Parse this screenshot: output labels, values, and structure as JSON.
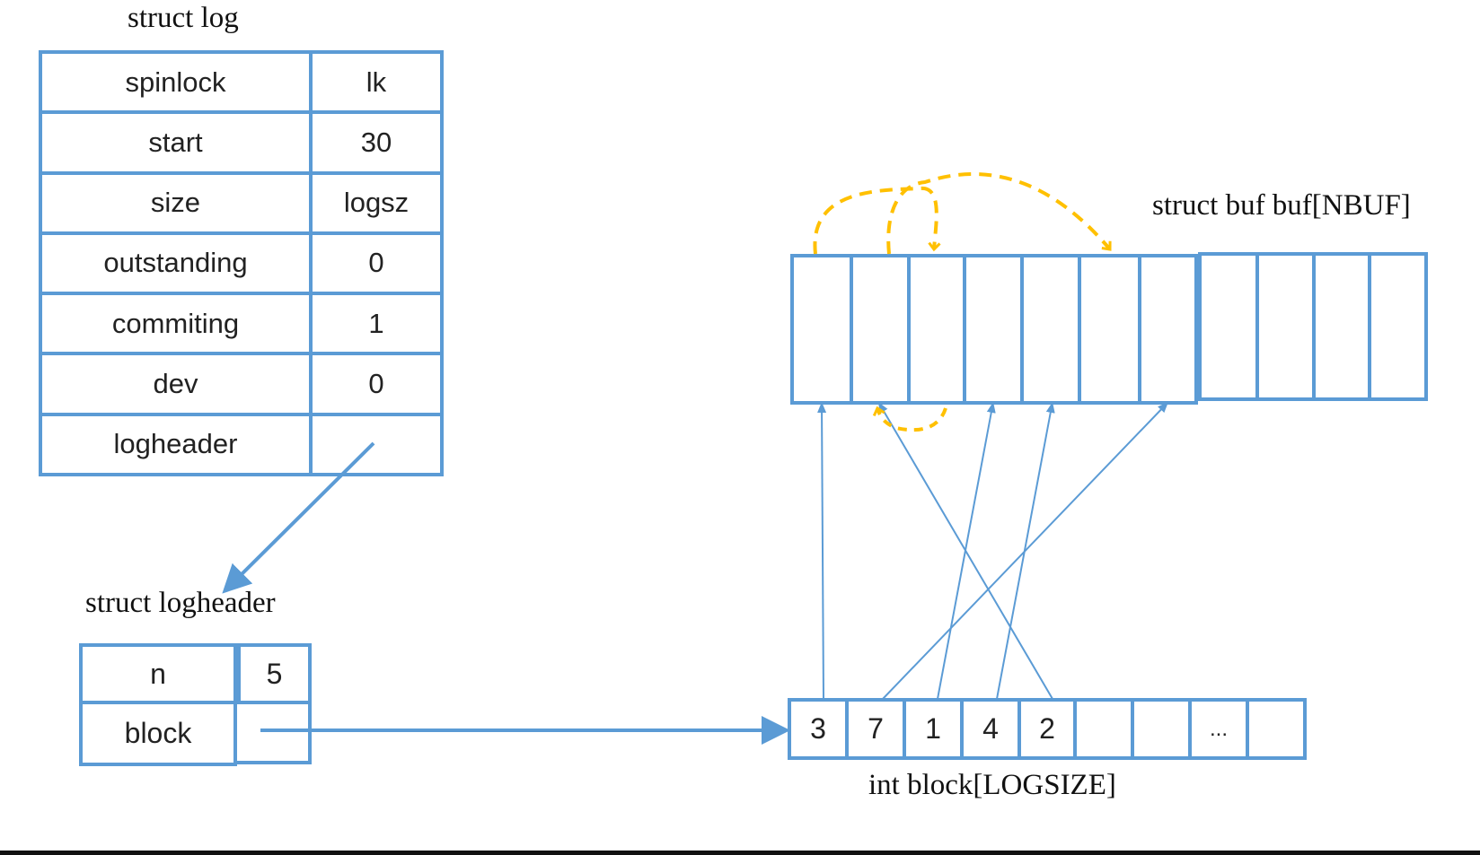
{
  "struct_log": {
    "title": "struct log",
    "rows": [
      {
        "name": "spinlock",
        "value": "lk"
      },
      {
        "name": "start",
        "value": "30"
      },
      {
        "name": "size",
        "value": "logsz"
      },
      {
        "name": "outstanding",
        "value": "0"
      },
      {
        "name": "commiting",
        "value": "1"
      },
      {
        "name": "dev",
        "value": "0"
      },
      {
        "name": "logheader",
        "value": ""
      }
    ]
  },
  "struct_logheader": {
    "title": "struct logheader",
    "rows": [
      {
        "name": "n",
        "value": "5"
      },
      {
        "name": "block",
        "value": ""
      }
    ]
  },
  "buf_array": {
    "title": "struct buf buf[NBUF]",
    "cell_count": 11
  },
  "block_array": {
    "title": "int block[LOGSIZE]",
    "cells": [
      "3",
      "7",
      "1",
      "4",
      "2",
      "",
      "",
      "...",
      ""
    ]
  },
  "colors": {
    "box_border": "#5b9bd5",
    "arrow_blue": "#5b9bd5",
    "dashed_arrow": "#ffc000"
  }
}
